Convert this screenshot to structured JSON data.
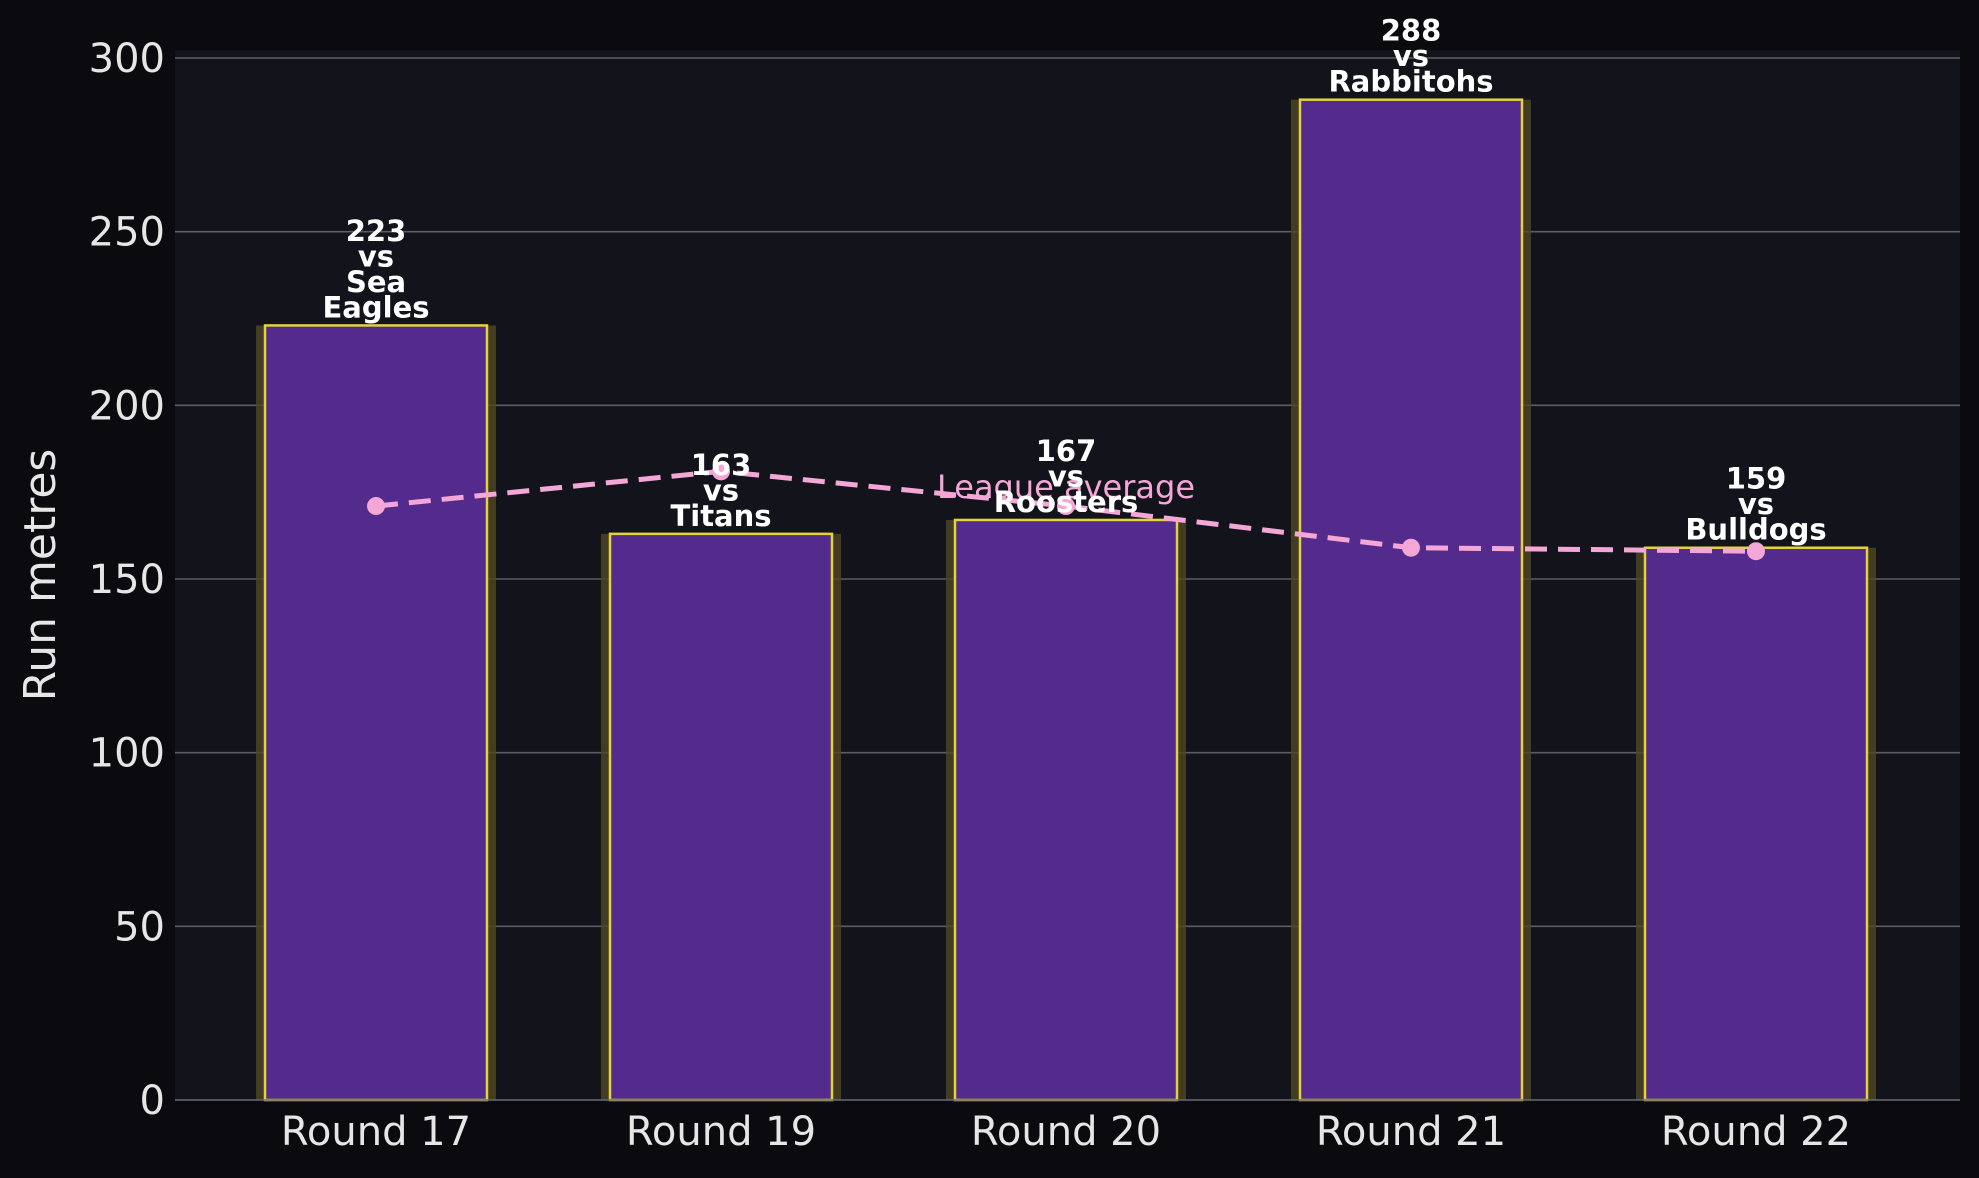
{
  "colors": {
    "figure_bg": "#0b0b0f",
    "plot_bg": "#12131b",
    "grid": "#5c5c66",
    "bar_fill": "#532b8c",
    "bar_edge": "#e2d23c",
    "bar_glow": "#4f4725",
    "average_line": "#f4a6d7",
    "text": "#e6e6e6",
    "label_text": "#ffffff"
  },
  "chart_data": {
    "type": "bar",
    "categories": [
      "Round 17",
      "Round 19",
      "Round 20",
      "Round 21",
      "Round 22"
    ],
    "series": [
      {
        "values": [
          223,
          163,
          167,
          288,
          159
        ],
        "labels": [
          [
            "223",
            "vs",
            "Sea",
            "Eagles"
          ],
          [
            "163",
            "vs",
            "Titans"
          ],
          [
            "167",
            "vs",
            "Roosters"
          ],
          [
            "288",
            "vs",
            "Rabbitohs"
          ],
          [
            "159",
            "vs",
            "Bulldogs"
          ]
        ]
      },
      {
        "name": "League average",
        "type": "line",
        "style": "dashed",
        "values": [
          171,
          181,
          171,
          159,
          158
        ]
      }
    ],
    "ylabel": "Run metres",
    "xlabel": "",
    "ylim": [
      0,
      300
    ],
    "yticks": [
      0,
      50,
      100,
      150,
      200,
      250,
      300
    ],
    "grid": "horizontal"
  }
}
